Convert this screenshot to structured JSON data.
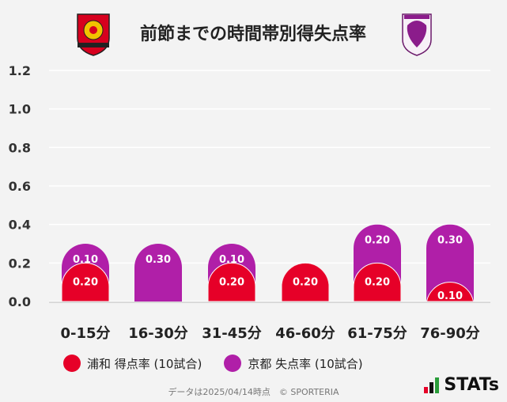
{
  "header": {
    "title": "前節までの時間帯別得失点率",
    "home_logo_icon": "urawa-reds-crest-icon",
    "away_logo_icon": "kyoto-sanga-crest-icon"
  },
  "colors": {
    "home": "#e60028",
    "away": "#b01fa8",
    "grid": "#ffffff",
    "background": "#f3f3f3"
  },
  "chart_data": {
    "type": "bar",
    "stacked": true,
    "title": "前節までの時間帯別得失点率",
    "categories": [
      "0-15分",
      "16-30分",
      "31-45分",
      "46-60分",
      "61-75分",
      "76-90分"
    ],
    "series": [
      {
        "name": "浦和 得点率 (10試合)",
        "values": [
          0.2,
          0.0,
          0.2,
          0.2,
          0.2,
          0.1
        ],
        "labels": [
          "0.20",
          "",
          "0.20",
          "0.20",
          "0.20",
          "0.10"
        ]
      },
      {
        "name": "京都 失点率 (10試合)",
        "values": [
          0.1,
          0.3,
          0.1,
          0.0,
          0.2,
          0.3
        ],
        "labels": [
          "0.10",
          "0.30",
          "0.10",
          "",
          "0.20",
          "0.30"
        ]
      }
    ],
    "y_ticks": [
      "0.0",
      "0.2",
      "0.4",
      "0.6",
      "0.8",
      "1.0",
      "1.2"
    ],
    "ylim": [
      0,
      1.2
    ],
    "grid": true,
    "legend_position": "bottom-left"
  },
  "legend": [
    {
      "label": "浦和 得点率 (10試合)"
    },
    {
      "label": "京都 失点率 (10試合)"
    }
  ],
  "footer": {
    "text": "データは2025/04/14時点　© SPORTERIA",
    "brand": "STATs"
  }
}
